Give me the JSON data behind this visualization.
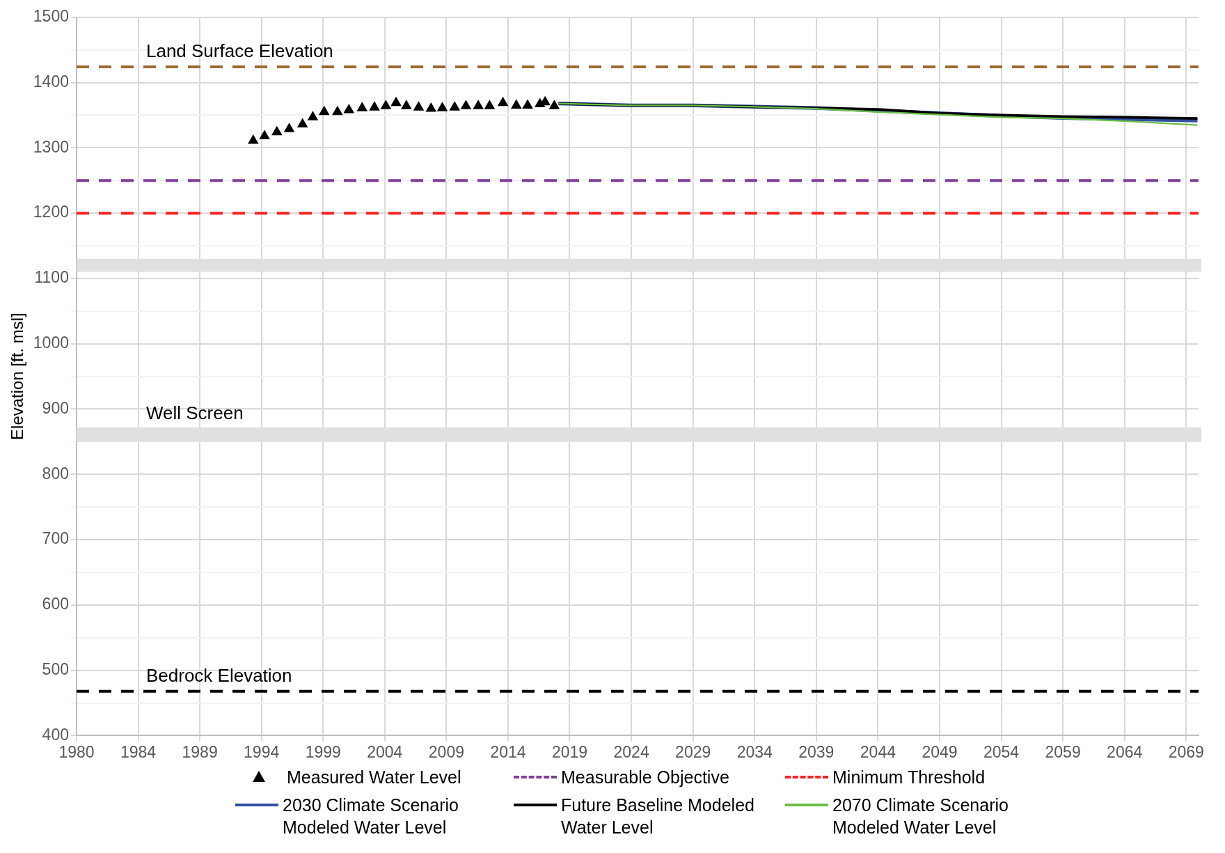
{
  "chart_data": {
    "type": "line",
    "ylabel": "Elevation [ft. msl]",
    "xlim": [
      "1980-01-01",
      "2071-01-01"
    ],
    "ylim": [
      400,
      1500
    ],
    "xticks": [
      {
        "value": "1980-01-01",
        "label": "1980"
      },
      {
        "value": "1984-12-31",
        "label": "1984"
      },
      {
        "value": "1989-12-31",
        "label": "1989"
      },
      {
        "value": "1994-12-31",
        "label": "1994"
      },
      {
        "value": "1999-12-31",
        "label": "1999"
      },
      {
        "value": "2004-12-31",
        "label": "2004"
      },
      {
        "value": "2009-12-31",
        "label": "2009"
      },
      {
        "value": "2014-12-31",
        "label": "2014"
      },
      {
        "value": "2019-12-31",
        "label": "2019"
      },
      {
        "value": "2024-12-31",
        "label": "2024"
      },
      {
        "value": "2029-12-31",
        "label": "2029"
      },
      {
        "value": "2034-12-31",
        "label": "2034"
      },
      {
        "value": "2039-12-31",
        "label": "2039"
      },
      {
        "value": "2044-12-31",
        "label": "2044"
      },
      {
        "value": "2049-12-31",
        "label": "2049"
      },
      {
        "value": "2054-12-31",
        "label": "2054"
      },
      {
        "value": "2059-12-31",
        "label": "2059"
      },
      {
        "value": "2064-12-31",
        "label": "2064"
      },
      {
        "value": "2069-12-31",
        "label": "2069"
      }
    ],
    "yticks": [
      400,
      {
        "value": 450,
        "label": null
      },
      500,
      {
        "value": 550,
        "label": null
      },
      600,
      {
        "value": 650,
        "label": null
      },
      700,
      {
        "value": 750,
        "label": null
      },
      800,
      {
        "value": 850,
        "label": null
      },
      900,
      {
        "value": 950,
        "label": null
      },
      1000,
      {
        "value": 1050,
        "label": null
      },
      1100,
      {
        "value": 1150,
        "label": null
      },
      1200,
      {
        "value": 1250,
        "label": null
      },
      1300,
      {
        "value": 1350,
        "label": null
      },
      1400,
      {
        "value": 1450,
        "label": null
      },
      1500
    ],
    "grid": true,
    "legend": "bottom",
    "series": [
      {
        "name": "Measured Water Level",
        "type": "scatter",
        "marker": "triangle",
        "color": "#000000",
        "x": [
          "1994-05",
          "1995-04",
          "1996-04",
          "1997-04",
          "1998-05",
          "1999-03",
          "2000-02",
          "2001-03",
          "2002-02",
          "2003-03",
          "2004-03",
          "2005-02",
          "2005-12",
          "2006-10",
          "2007-10",
          "2008-10",
          "2009-09",
          "2010-09",
          "2011-08",
          "2012-08",
          "2013-07",
          "2014-08",
          "2015-09",
          "2016-08",
          "2017-08",
          "2018-01",
          "2018-10"
        ],
        "values": [
          1311,
          1318,
          1324,
          1329,
          1336,
          1347,
          1355,
          1355,
          1358,
          1361,
          1362,
          1364,
          1369,
          1364,
          1362,
          1360,
          1361,
          1362,
          1364,
          1364,
          1364,
          1369,
          1365,
          1365,
          1367,
          1370,
          1364
        ]
      },
      {
        "name": "Measurable Objective",
        "marker": "none",
        "line_style": "dashed",
        "color": "#7f3f98",
        "x": [
          "1980-01-01",
          "2071-01-01"
        ],
        "values": [
          1250,
          1250
        ]
      },
      {
        "name": "Minimum Threshold",
        "marker": "none",
        "line_style": "dashed",
        "color": "#ff1f1f",
        "x": [
          "1980-01-01",
          "2071-01-01"
        ],
        "values": [
          1200,
          1200
        ]
      },
      {
        "name": "2030 Climate Scenario Modeled Water Level",
        "marker": "none",
        "line_style": "solid",
        "color": "#2f4fa0",
        "x": [
          "2019-02",
          "2025-01",
          "2030-01",
          "2035-01",
          "2040-01",
          "2045-01",
          "2050-01",
          "2055-01",
          "2060-01",
          "2065-01",
          "2070-12"
        ],
        "values": [
          1368,
          1365,
          1365,
          1363,
          1361,
          1357,
          1353,
          1349,
          1346,
          1344,
          1342
        ]
      },
      {
        "name": "Future Baseline Modeled Water Level",
        "marker": "none",
        "line_style": "solid",
        "color": "#000000",
        "x": [
          "2019-02",
          "2025-01",
          "2030-01",
          "2035-01",
          "2040-01",
          "2045-01",
          "2050-01",
          "2055-01",
          "2060-01",
          "2065-01",
          "2070-12"
        ],
        "values": [
          1368,
          1365,
          1365,
          1363,
          1361,
          1359,
          1353,
          1350,
          1348,
          1347,
          1345
        ]
      },
      {
        "name": "2070 Climate Scenario Modeled Water Level",
        "marker": "none",
        "line_style": "solid",
        "color": "#6abf45",
        "x": [
          "2019-02",
          "2025-01",
          "2030-01",
          "2035-01",
          "2040-01",
          "2045-01",
          "2050-01",
          "2055-01",
          "2060-01",
          "2065-01",
          "2070-12"
        ],
        "values": [
          1368,
          1365,
          1365,
          1363,
          1360,
          1355,
          1351,
          1347,
          1345,
          1341,
          1335
        ]
      }
    ],
    "ref_lines": [
      {
        "axis": "y",
        "value": 1424,
        "label": "Land Surface Elevation",
        "color": "#9c6b30",
        "line_style": "dashed"
      },
      {
        "axis": "y",
        "value": 468,
        "label": "Bedrock Elevation",
        "color": "#000000",
        "line_style": "dashed"
      }
    ],
    "bands": [
      {
        "axis": "y",
        "from": 1110,
        "to": 1130,
        "color": "#e0e0e0"
      },
      {
        "axis": "y",
        "from": 850,
        "to": 872,
        "label": "Well Screen",
        "color": "#e0e0e0"
      }
    ]
  }
}
